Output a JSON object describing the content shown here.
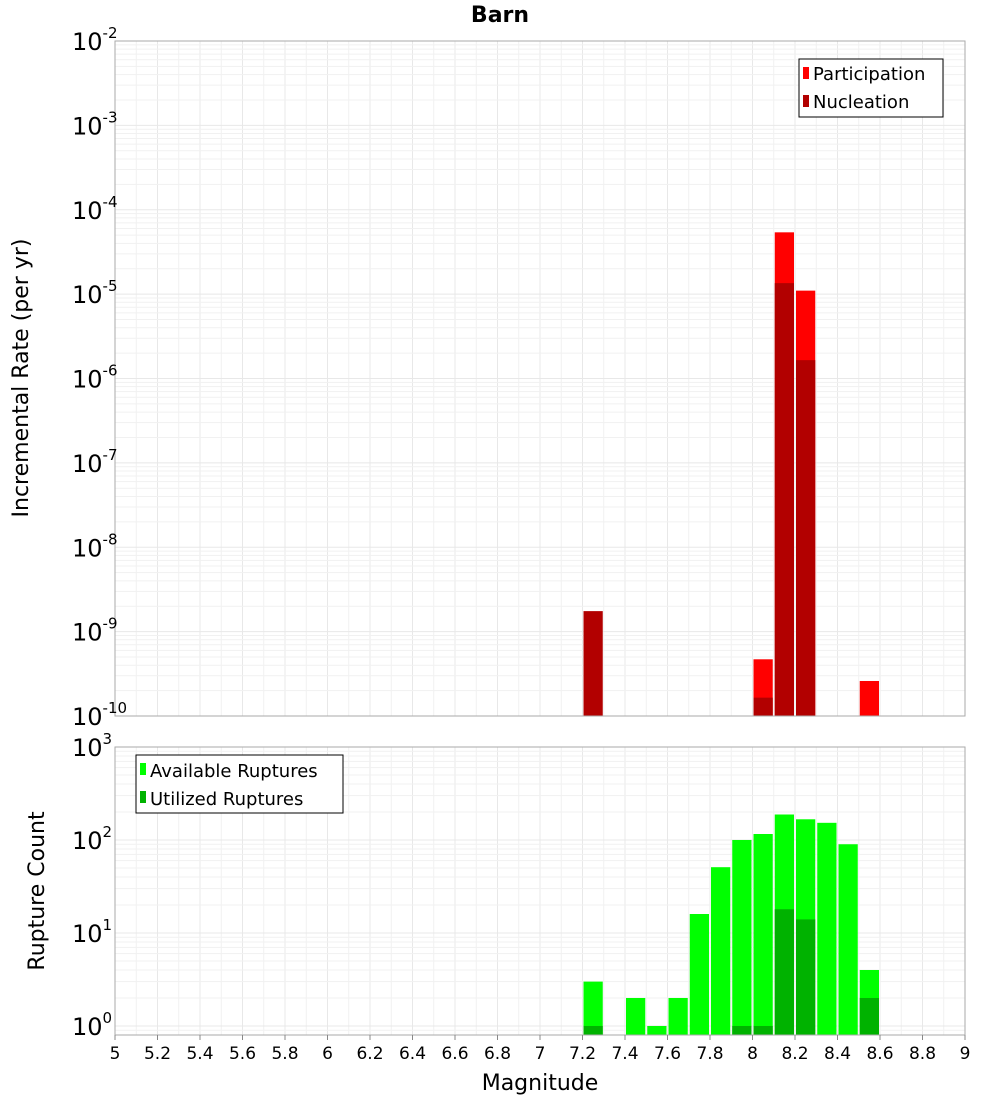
{
  "chart_data": [
    {
      "type": "bar",
      "title": "Barn",
      "xlabel": "",
      "ylabel": "Incremental Rate (per yr)",
      "yscale": "log",
      "xlim": [
        5,
        9
      ],
      "ylim": [
        1e-10,
        0.01
      ],
      "bar_width": 0.1,
      "legend_position": "top-right",
      "grid": true,
      "series": [
        {
          "name": "Participation",
          "color": "#ff0000",
          "points": [
            {
              "x": 8.05,
              "y": 4.7e-10
            },
            {
              "x": 8.15,
              "y": 5.4e-05
            },
            {
              "x": 8.25,
              "y": 1.1e-05
            },
            {
              "x": 8.55,
              "y": 2.6e-10
            }
          ]
        },
        {
          "name": "Nucleation",
          "color": "#b20000",
          "points": [
            {
              "x": 7.25,
              "y": 1.75e-09
            },
            {
              "x": 8.05,
              "y": 1.65e-10
            },
            {
              "x": 8.15,
              "y": 1.35e-05
            },
            {
              "x": 8.25,
              "y": 1.65e-06
            }
          ]
        }
      ]
    },
    {
      "type": "bar",
      "title": "",
      "xlabel": "Magnitude",
      "ylabel": "Rupture Count",
      "yscale": "log",
      "xlim": [
        5,
        9
      ],
      "ylim": [
        0.8,
        1000
      ],
      "bar_width": 0.1,
      "legend_position": "top-left",
      "grid": true,
      "series": [
        {
          "name": "Available Ruptures",
          "color": "#00ff00",
          "points": [
            {
              "x": 7.25,
              "y": 3
            },
            {
              "x": 7.45,
              "y": 2
            },
            {
              "x": 7.55,
              "y": 1
            },
            {
              "x": 7.65,
              "y": 2
            },
            {
              "x": 7.75,
              "y": 16
            },
            {
              "x": 7.85,
              "y": 51
            },
            {
              "x": 7.95,
              "y": 100
            },
            {
              "x": 8.05,
              "y": 116
            },
            {
              "x": 8.15,
              "y": 188
            },
            {
              "x": 8.25,
              "y": 167
            },
            {
              "x": 8.35,
              "y": 153
            },
            {
              "x": 8.45,
              "y": 90
            },
            {
              "x": 8.55,
              "y": 4
            }
          ]
        },
        {
          "name": "Utilized Ruptures",
          "color": "#00b200",
          "points": [
            {
              "x": 7.25,
              "y": 1
            },
            {
              "x": 7.95,
              "y": 1
            },
            {
              "x": 8.05,
              "y": 1
            },
            {
              "x": 8.15,
              "y": 18
            },
            {
              "x": 8.25,
              "y": 14
            },
            {
              "x": 8.55,
              "y": 2
            }
          ]
        }
      ]
    }
  ],
  "x_ticks": [
    "5",
    "5.2",
    "5.4",
    "5.6",
    "5.8",
    "6",
    "6.2",
    "6.4",
    "6.6",
    "6.8",
    "7",
    "7.2",
    "7.4",
    "7.6",
    "7.8",
    "8",
    "8.2",
    "8.4",
    "8.6",
    "8.8",
    "9"
  ],
  "top_y_ticks": [
    {
      "base": "10",
      "exp": "-2"
    },
    {
      "base": "10",
      "exp": "-3"
    },
    {
      "base": "10",
      "exp": "-4"
    },
    {
      "base": "10",
      "exp": "-5"
    },
    {
      "base": "10",
      "exp": "-6"
    },
    {
      "base": "10",
      "exp": "-7"
    },
    {
      "base": "10",
      "exp": "-8"
    },
    {
      "base": "10",
      "exp": "-9"
    },
    {
      "base": "10",
      "exp": "-10"
    }
  ],
  "bottom_y_ticks": [
    {
      "base": "10",
      "exp": "3"
    },
    {
      "base": "10",
      "exp": "2"
    },
    {
      "base": "10",
      "exp": "1"
    },
    {
      "base": "10",
      "exp": "0"
    }
  ]
}
